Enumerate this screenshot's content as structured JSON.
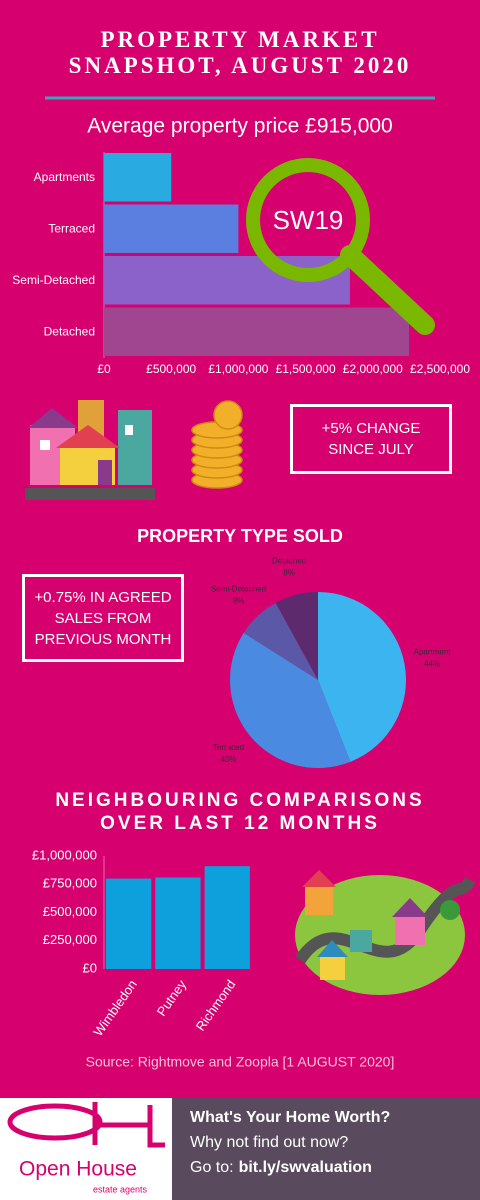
{
  "header": {
    "title_lines": [
      "PROPERTY MARKET",
      "SNAPSHOT, AUGUST 2020"
    ]
  },
  "chart_data": [
    {
      "type": "barh",
      "title": "Average property price £915,000",
      "annotation": "SW19",
      "categories": [
        "Apartments",
        "Terraced",
        "Semi-Detached",
        "Detached"
      ],
      "values": [
        500000,
        1000000,
        1830000,
        2270000
      ],
      "colors": [
        "#29abe2",
        "#5b7fe0",
        "#8a62c9",
        "#a0458f"
      ],
      "xlim": [
        0,
        2500000
      ],
      "xticks": [
        {
          "value": 0,
          "label": "£0"
        },
        {
          "value": 500000,
          "label": "£500,000"
        },
        {
          "value": 1000000,
          "label": "£1,000,000"
        },
        {
          "value": 1500000,
          "label": "£1,500,000"
        },
        {
          "value": 2000000,
          "label": "£2,000,000"
        },
        {
          "value": 2500000,
          "label": "£2,500,000"
        }
      ]
    },
    {
      "type": "pie",
      "title": "PROPERTY TYPE SOLD",
      "categories": [
        "Apartment",
        "Terraced",
        "Semi-Detached",
        "Detached"
      ],
      "values": [
        44,
        40,
        8,
        8
      ],
      "value_labels": [
        "44%",
        "40%",
        "8%",
        "8%"
      ],
      "colors": [
        "#3bb4f0",
        "#4a8ae0",
        "#5c58a8",
        "#5e2a6e"
      ]
    },
    {
      "type": "bar",
      "title_lines": [
        "NEIGHBOURING COMPARISONS",
        "OVER LAST 12 MONTHS"
      ],
      "categories": [
        "Wimbledon",
        "Putney",
        "Richmond"
      ],
      "values": [
        800000,
        810000,
        910000
      ],
      "color": "#0da0dd",
      "ylim": [
        0,
        1000000
      ],
      "yticks": [
        {
          "value": 0,
          "label": "£0"
        },
        {
          "value": 250000,
          "label": "£250,000"
        },
        {
          "value": 500000,
          "label": "£500,000"
        },
        {
          "value": 750000,
          "label": "£750,000"
        },
        {
          "value": 1000000,
          "label": "£1,000,000"
        }
      ]
    }
  ],
  "callouts": [
    "+5% CHANGE SINCE JULY",
    "+0.75% IN AGREED SALES FROM PREVIOUS MONTH"
  ],
  "source": "Source: Rightmove and Zoopla [1 AUGUST 2020]",
  "footer": {
    "logo_name": "Open House",
    "logo_tagline": "estate agents",
    "heading": "What's Your Home Worth?",
    "line": "Why not find out now?",
    "link_prefix": "Go to:",
    "link": "bit.ly/swvaluation"
  }
}
